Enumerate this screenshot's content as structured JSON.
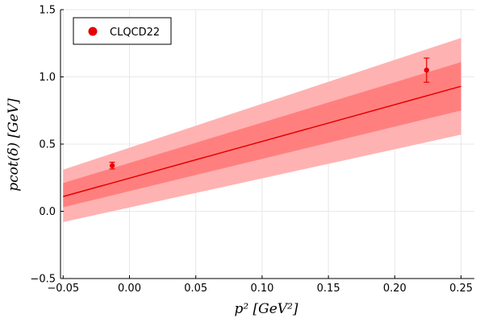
{
  "chart_data": {
    "type": "line",
    "title": "",
    "xlabel": "p² [GeV²]",
    "ylabel": "pcot(δ) [GeV]",
    "xlim": [
      -0.052,
      0.26
    ],
    "ylim": [
      -0.5,
      1.5
    ],
    "xticks": [
      -0.05,
      0.0,
      0.05,
      0.1,
      0.15,
      0.2,
      0.25
    ],
    "xtick_labels": [
      "−0.05",
      "0.00",
      "0.05",
      "0.10",
      "0.15",
      "0.20",
      "0.25"
    ],
    "yticks": [
      -0.5,
      0.0,
      0.5,
      1.0,
      1.5
    ],
    "ytick_labels": [
      "−0.5",
      "0.0",
      "0.5",
      "1.0",
      "1.5"
    ],
    "grid": true,
    "legend_position": "top-left",
    "fit": {
      "x": [
        -0.05,
        0.25
      ],
      "y": [
        0.11,
        0.93
      ],
      "band_inner_lower": [
        0.03,
        0.75
      ],
      "band_inner_upper": [
        0.21,
        1.11
      ],
      "band_outer_lower": [
        -0.08,
        0.57
      ],
      "band_outer_upper": [
        0.31,
        1.29
      ],
      "color": "#e60000",
      "band_inner_color": "#ff7f7f",
      "band_outer_color": "#ffb2b2"
    },
    "series": [
      {
        "name": "CLQCD22",
        "x": [
          -0.013,
          0.224
        ],
        "y": [
          0.34,
          1.05
        ],
        "yerr": [
          0.025,
          0.09
        ],
        "color": "#e60000"
      }
    ]
  }
}
